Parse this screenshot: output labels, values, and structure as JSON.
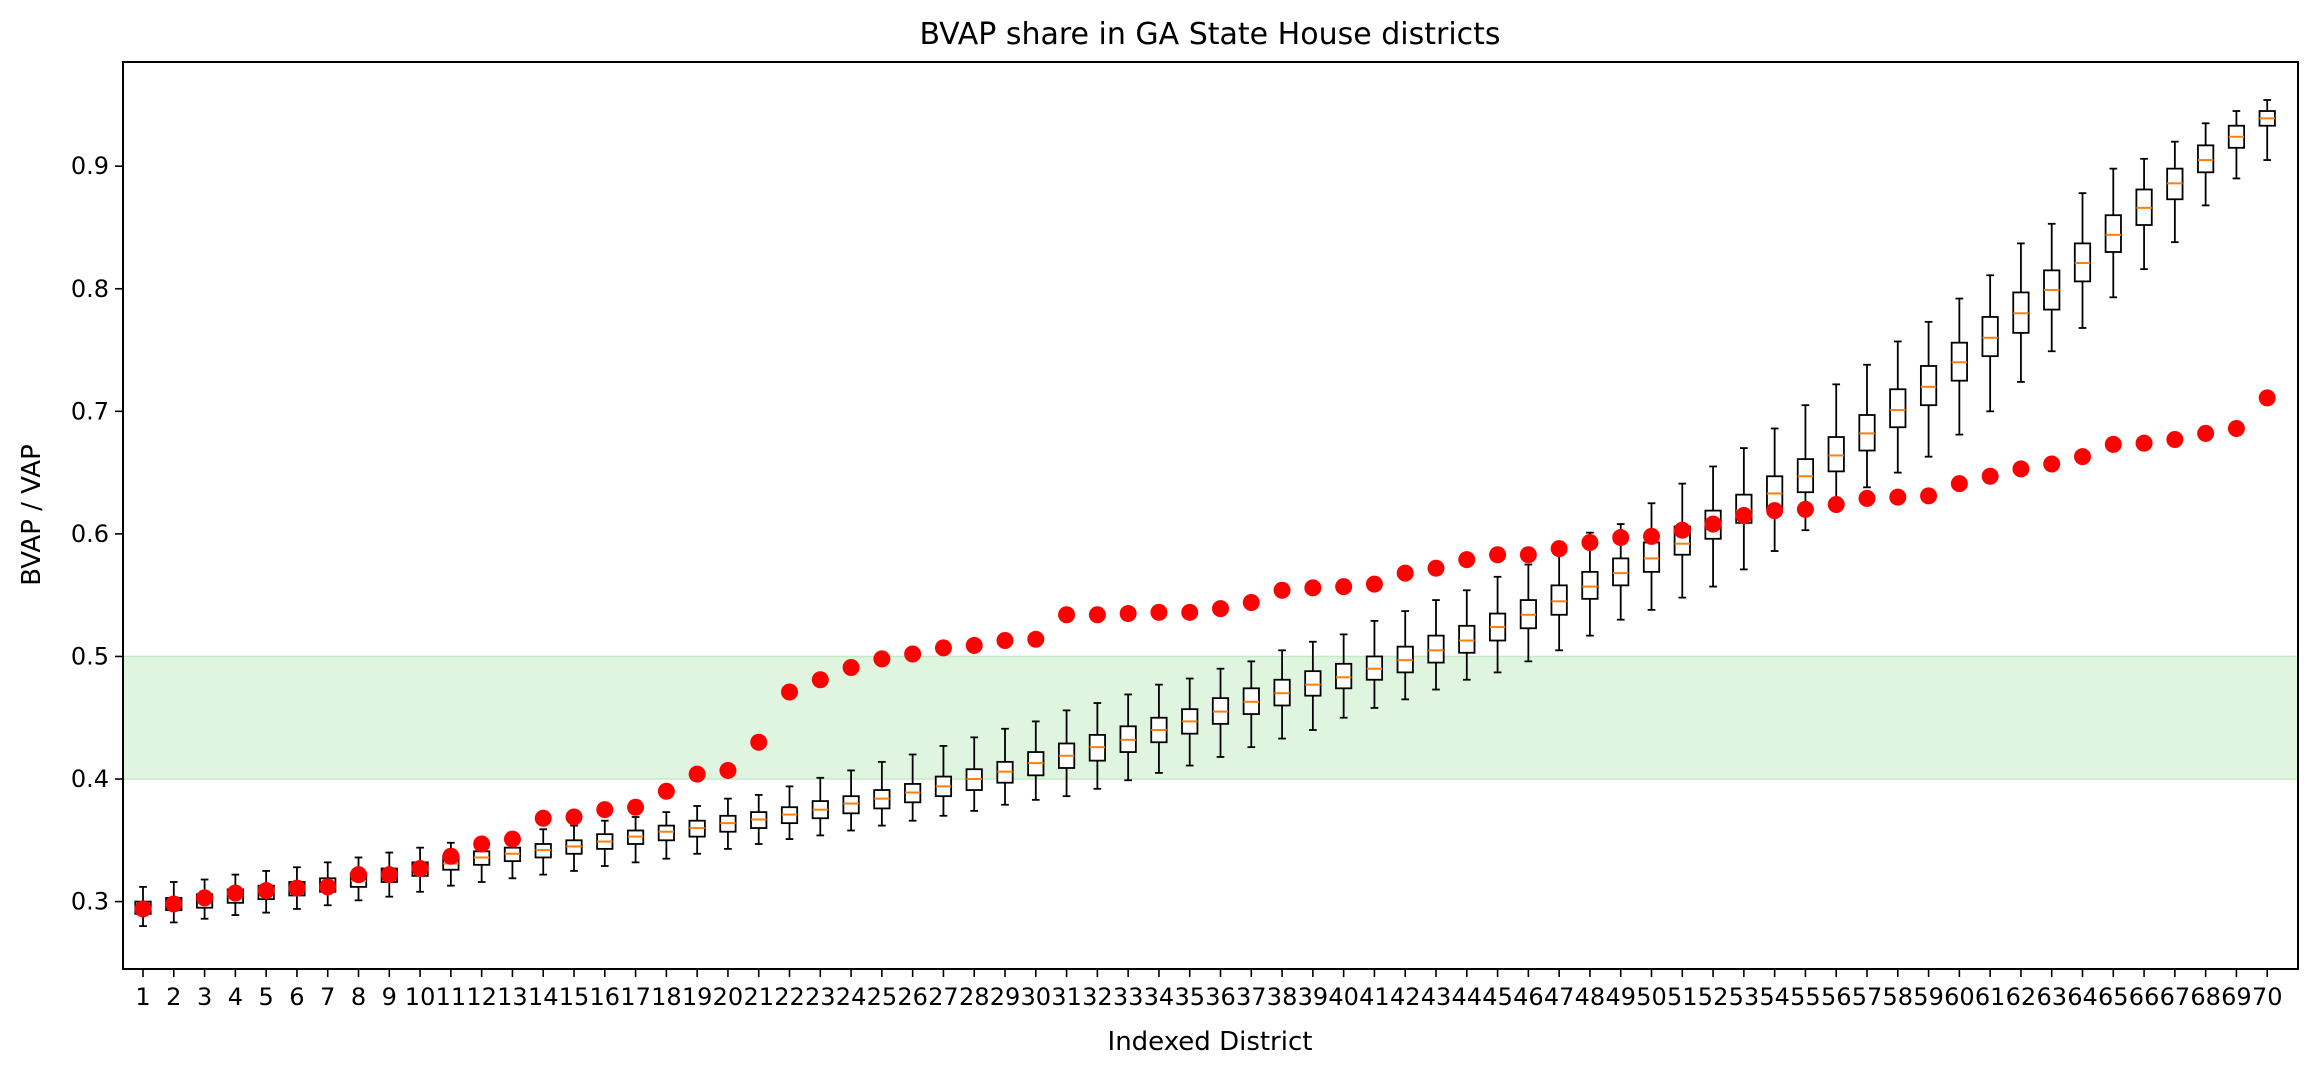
{
  "chart_data": {
    "type": "box",
    "title": "BVAP share in GA State House districts",
    "xlabel": "Indexed District",
    "ylabel": "BVAP / VAP",
    "ylim": [
      0.245,
      0.985
    ],
    "yticks": [
      "0.3",
      "0.4",
      "0.5",
      "0.6",
      "0.7",
      "0.8",
      "0.9"
    ],
    "categories": [
      "1",
      "2",
      "3",
      "4",
      "5",
      "6",
      "7",
      "8",
      "9",
      "10",
      "11",
      "12",
      "13",
      "14",
      "15",
      "16",
      "17",
      "18",
      "19",
      "20",
      "21",
      "22",
      "23",
      "24",
      "25",
      "26",
      "27",
      "28",
      "29",
      "30",
      "31",
      "32",
      "33",
      "34",
      "35",
      "36",
      "37",
      "38",
      "39",
      "40",
      "41",
      "42",
      "43",
      "44",
      "45",
      "46",
      "47",
      "48",
      "49",
      "50",
      "51",
      "52",
      "53",
      "54",
      "55",
      "56",
      "57",
      "58",
      "59",
      "60",
      "61",
      "62",
      "63",
      "64",
      "65",
      "66",
      "67",
      "68",
      "69",
      "70"
    ],
    "highlight_band": {
      "from": 0.4,
      "to": 0.5,
      "color": "#dff5df",
      "edge_color": "#c3ebc3"
    },
    "colors": {
      "box": "#000000",
      "median": "#ff7f0e",
      "point": "#ff0000"
    },
    "grid": false,
    "medians": [
      0.295,
      0.298,
      0.301,
      0.304,
      0.307,
      0.31,
      0.313,
      0.317,
      0.321,
      0.326,
      0.331,
      0.336,
      0.339,
      0.342,
      0.345,
      0.349,
      0.353,
      0.357,
      0.36,
      0.364,
      0.367,
      0.371,
      0.375,
      0.38,
      0.384,
      0.389,
      0.394,
      0.4,
      0.406,
      0.413,
      0.419,
      0.426,
      0.432,
      0.44,
      0.447,
      0.455,
      0.463,
      0.47,
      0.477,
      0.483,
      0.49,
      0.497,
      0.505,
      0.513,
      0.524,
      0.534,
      0.545,
      0.557,
      0.568,
      0.58,
      0.592,
      0.605,
      0.619,
      0.633,
      0.647,
      0.664,
      0.682,
      0.701,
      0.72,
      0.74,
      0.76,
      0.78,
      0.799,
      0.821,
      0.844,
      0.866,
      0.886,
      0.905,
      0.924,
      0.939
    ],
    "q1": [
      0.29,
      0.293,
      0.295,
      0.299,
      0.302,
      0.305,
      0.308,
      0.312,
      0.316,
      0.321,
      0.326,
      0.33,
      0.333,
      0.336,
      0.339,
      0.343,
      0.347,
      0.35,
      0.353,
      0.357,
      0.36,
      0.364,
      0.368,
      0.372,
      0.376,
      0.381,
      0.386,
      0.391,
      0.397,
      0.403,
      0.409,
      0.415,
      0.422,
      0.43,
      0.437,
      0.445,
      0.453,
      0.46,
      0.468,
      0.474,
      0.481,
      0.487,
      0.495,
      0.503,
      0.513,
      0.523,
      0.534,
      0.547,
      0.558,
      0.569,
      0.583,
      0.596,
      0.609,
      0.621,
      0.634,
      0.651,
      0.668,
      0.687,
      0.705,
      0.725,
      0.745,
      0.764,
      0.783,
      0.806,
      0.83,
      0.852,
      0.873,
      0.895,
      0.915,
      0.933
    ],
    "q3": [
      0.3,
      0.303,
      0.306,
      0.31,
      0.313,
      0.316,
      0.319,
      0.323,
      0.327,
      0.332,
      0.337,
      0.341,
      0.344,
      0.347,
      0.35,
      0.355,
      0.358,
      0.362,
      0.366,
      0.37,
      0.373,
      0.377,
      0.382,
      0.386,
      0.391,
      0.396,
      0.402,
      0.408,
      0.414,
      0.422,
      0.429,
      0.436,
      0.443,
      0.45,
      0.457,
      0.466,
      0.474,
      0.481,
      0.488,
      0.494,
      0.5,
      0.508,
      0.517,
      0.525,
      0.535,
      0.546,
      0.558,
      0.569,
      0.58,
      0.593,
      0.606,
      0.619,
      0.632,
      0.647,
      0.661,
      0.679,
      0.697,
      0.718,
      0.737,
      0.756,
      0.777,
      0.797,
      0.815,
      0.837,
      0.86,
      0.881,
      0.898,
      0.917,
      0.933,
      0.945
    ],
    "whisker_low": [
      0.28,
      0.283,
      0.286,
      0.289,
      0.291,
      0.294,
      0.297,
      0.301,
      0.304,
      0.308,
      0.313,
      0.316,
      0.319,
      0.322,
      0.325,
      0.329,
      0.332,
      0.335,
      0.339,
      0.343,
      0.347,
      0.351,
      0.354,
      0.358,
      0.362,
      0.366,
      0.37,
      0.374,
      0.379,
      0.383,
      0.386,
      0.392,
      0.399,
      0.405,
      0.411,
      0.418,
      0.426,
      0.433,
      0.44,
      0.45,
      0.458,
      0.465,
      0.473,
      0.481,
      0.487,
      0.496,
      0.505,
      0.517,
      0.53,
      0.538,
      0.548,
      0.557,
      0.571,
      0.586,
      0.603,
      0.62,
      0.638,
      0.65,
      0.663,
      0.681,
      0.7,
      0.724,
      0.749,
      0.768,
      0.793,
      0.816,
      0.838,
      0.868,
      0.89,
      0.905
    ],
    "whisker_high": [
      0.312,
      0.316,
      0.318,
      0.322,
      0.325,
      0.328,
      0.332,
      0.336,
      0.34,
      0.344,
      0.348,
      0.352,
      0.356,
      0.359,
      0.362,
      0.366,
      0.369,
      0.373,
      0.378,
      0.384,
      0.387,
      0.394,
      0.401,
      0.407,
      0.414,
      0.42,
      0.427,
      0.434,
      0.441,
      0.447,
      0.456,
      0.462,
      0.469,
      0.477,
      0.482,
      0.49,
      0.496,
      0.505,
      0.512,
      0.518,
      0.529,
      0.537,
      0.546,
      0.554,
      0.565,
      0.575,
      0.59,
      0.601,
      0.608,
      0.625,
      0.641,
      0.655,
      0.67,
      0.686,
      0.705,
      0.722,
      0.738,
      0.757,
      0.773,
      0.792,
      0.811,
      0.837,
      0.853,
      0.878,
      0.898,
      0.906,
      0.92,
      0.935,
      0.945,
      0.954
    ],
    "points": [
      0.294,
      0.298,
      0.303,
      0.307,
      0.309,
      0.311,
      0.312,
      0.322,
      0.322,
      0.327,
      0.337,
      0.347,
      0.351,
      0.368,
      0.369,
      0.375,
      0.377,
      0.39,
      0.404,
      0.407,
      0.43,
      0.471,
      0.481,
      0.491,
      0.498,
      0.502,
      0.507,
      0.509,
      0.513,
      0.514,
      0.534,
      0.534,
      0.535,
      0.536,
      0.536,
      0.539,
      0.544,
      0.554,
      0.556,
      0.557,
      0.559,
      0.568,
      0.572,
      0.579,
      0.583,
      0.583,
      0.588,
      0.593,
      0.597,
      0.598,
      0.603,
      0.608,
      0.615,
      0.619,
      0.62,
      0.624,
      0.629,
      0.63,
      0.631,
      0.641,
      0.647,
      0.653,
      0.657,
      0.663,
      0.673,
      0.674,
      0.677,
      0.682,
      0.686,
      0.711
    ]
  }
}
